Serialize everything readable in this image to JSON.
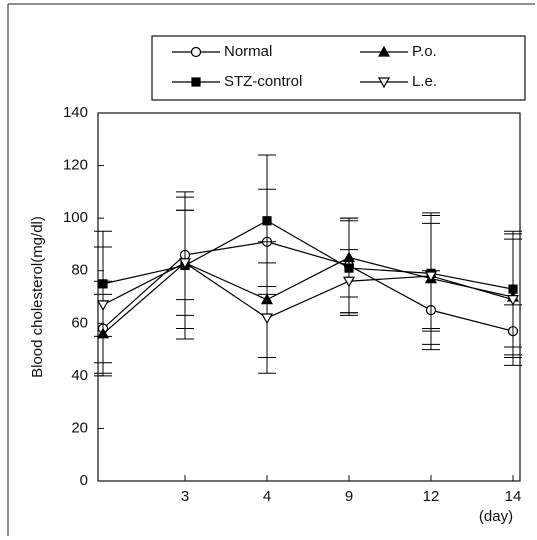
{
  "chart_data": {
    "type": "line",
    "y_label": "Blood cholesterol(mg/dl)",
    "x_label": "(day)",
    "categories": [
      null,
      "3",
      "4",
      "9",
      "12",
      "14"
    ],
    "ylim": [
      0,
      140
    ],
    "yticks": [
      0,
      20,
      40,
      60,
      80,
      100,
      120,
      140
    ],
    "series": [
      {
        "name": "Normal",
        "color": "#000000",
        "marker": "circle-open",
        "values": [
          58,
          86,
          91,
          82,
          65,
          57
        ],
        "errors": [
          18,
          17,
          20,
          18,
          15,
          10
        ]
      },
      {
        "name": "P.o.",
        "color": "#000000",
        "marker": "triangle-up-filled",
        "values": [
          56,
          83,
          69,
          85,
          77,
          70
        ],
        "errors": [
          15,
          20,
          22,
          15,
          25,
          22
        ]
      },
      {
        "name": "STZ-control",
        "color": "#000000",
        "marker": "square-filled",
        "values": [
          75,
          82,
          99,
          81,
          79,
          73
        ],
        "errors": [
          20,
          28,
          25,
          18,
          22,
          22
        ]
      },
      {
        "name": "L.e.",
        "color": "#000000",
        "marker": "triangle-down-open",
        "values": [
          67,
          83,
          62,
          76,
          78,
          69
        ],
        "errors": [
          22,
          25,
          21,
          12,
          20,
          25
        ]
      }
    ]
  }
}
